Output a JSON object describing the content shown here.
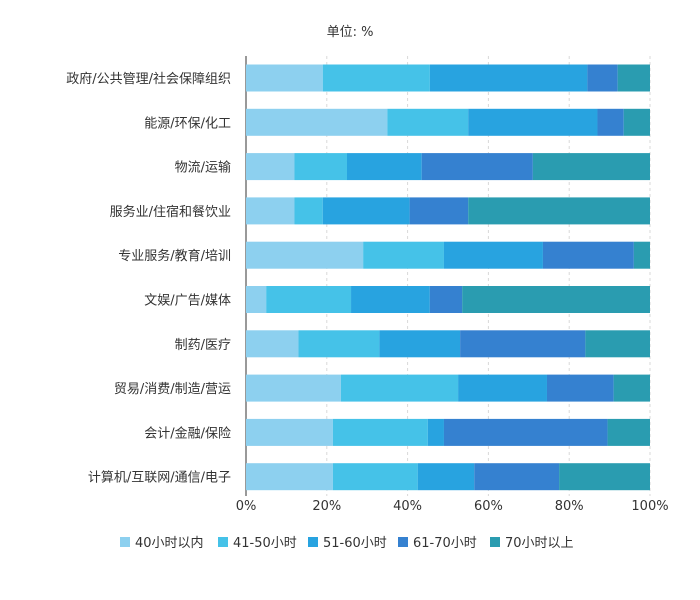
{
  "chart_data": {
    "type": "bar",
    "orientation": "horizontal",
    "stacked": true,
    "title": "单位: %",
    "xlim": [
      0,
      100
    ],
    "xticks": [
      "0%",
      "20%",
      "40%",
      "60%",
      "80%",
      "100%"
    ],
    "grid": true,
    "legend_position": "bottom",
    "categories": [
      "政府/公共管理/社会保障组织",
      "能源/环保/化工",
      "物流/运输",
      "服务业/住宿和餐饮业",
      "专业服务/教育/培训",
      "文娱/广告/媒体",
      "制药/医疗",
      "贸易/消费/制造/营运",
      "会计/金融/保险",
      "计算机/互联网/通信/电子"
    ],
    "series": [
      {
        "name": "40小时以内",
        "color": "#8dd0ef",
        "values": [
          19,
          35,
          12,
          12,
          29,
          5,
          13,
          23.5,
          21.5,
          21.5
        ]
      },
      {
        "name": "41-50小时",
        "color": "#45c2e8",
        "values": [
          26.5,
          20,
          13,
          7,
          20,
          21,
          20,
          29,
          23.5,
          21
        ]
      },
      {
        "name": "51-60小时",
        "color": "#28a3e0",
        "values": [
          39,
          32,
          18.5,
          21.5,
          24.5,
          19.5,
          20,
          22,
          4,
          14
        ]
      },
      {
        "name": "61-70小时",
        "color": "#3581d0",
        "values": [
          7.5,
          6.5,
          27.5,
          14.5,
          22.5,
          8,
          31,
          16.5,
          40.5,
          21
        ]
      },
      {
        "name": "70小时以上",
        "color": "#2a9cb0",
        "values": [
          8,
          6.5,
          29,
          45,
          4,
          46.5,
          16,
          9,
          10.5,
          22.5
        ]
      }
    ]
  }
}
